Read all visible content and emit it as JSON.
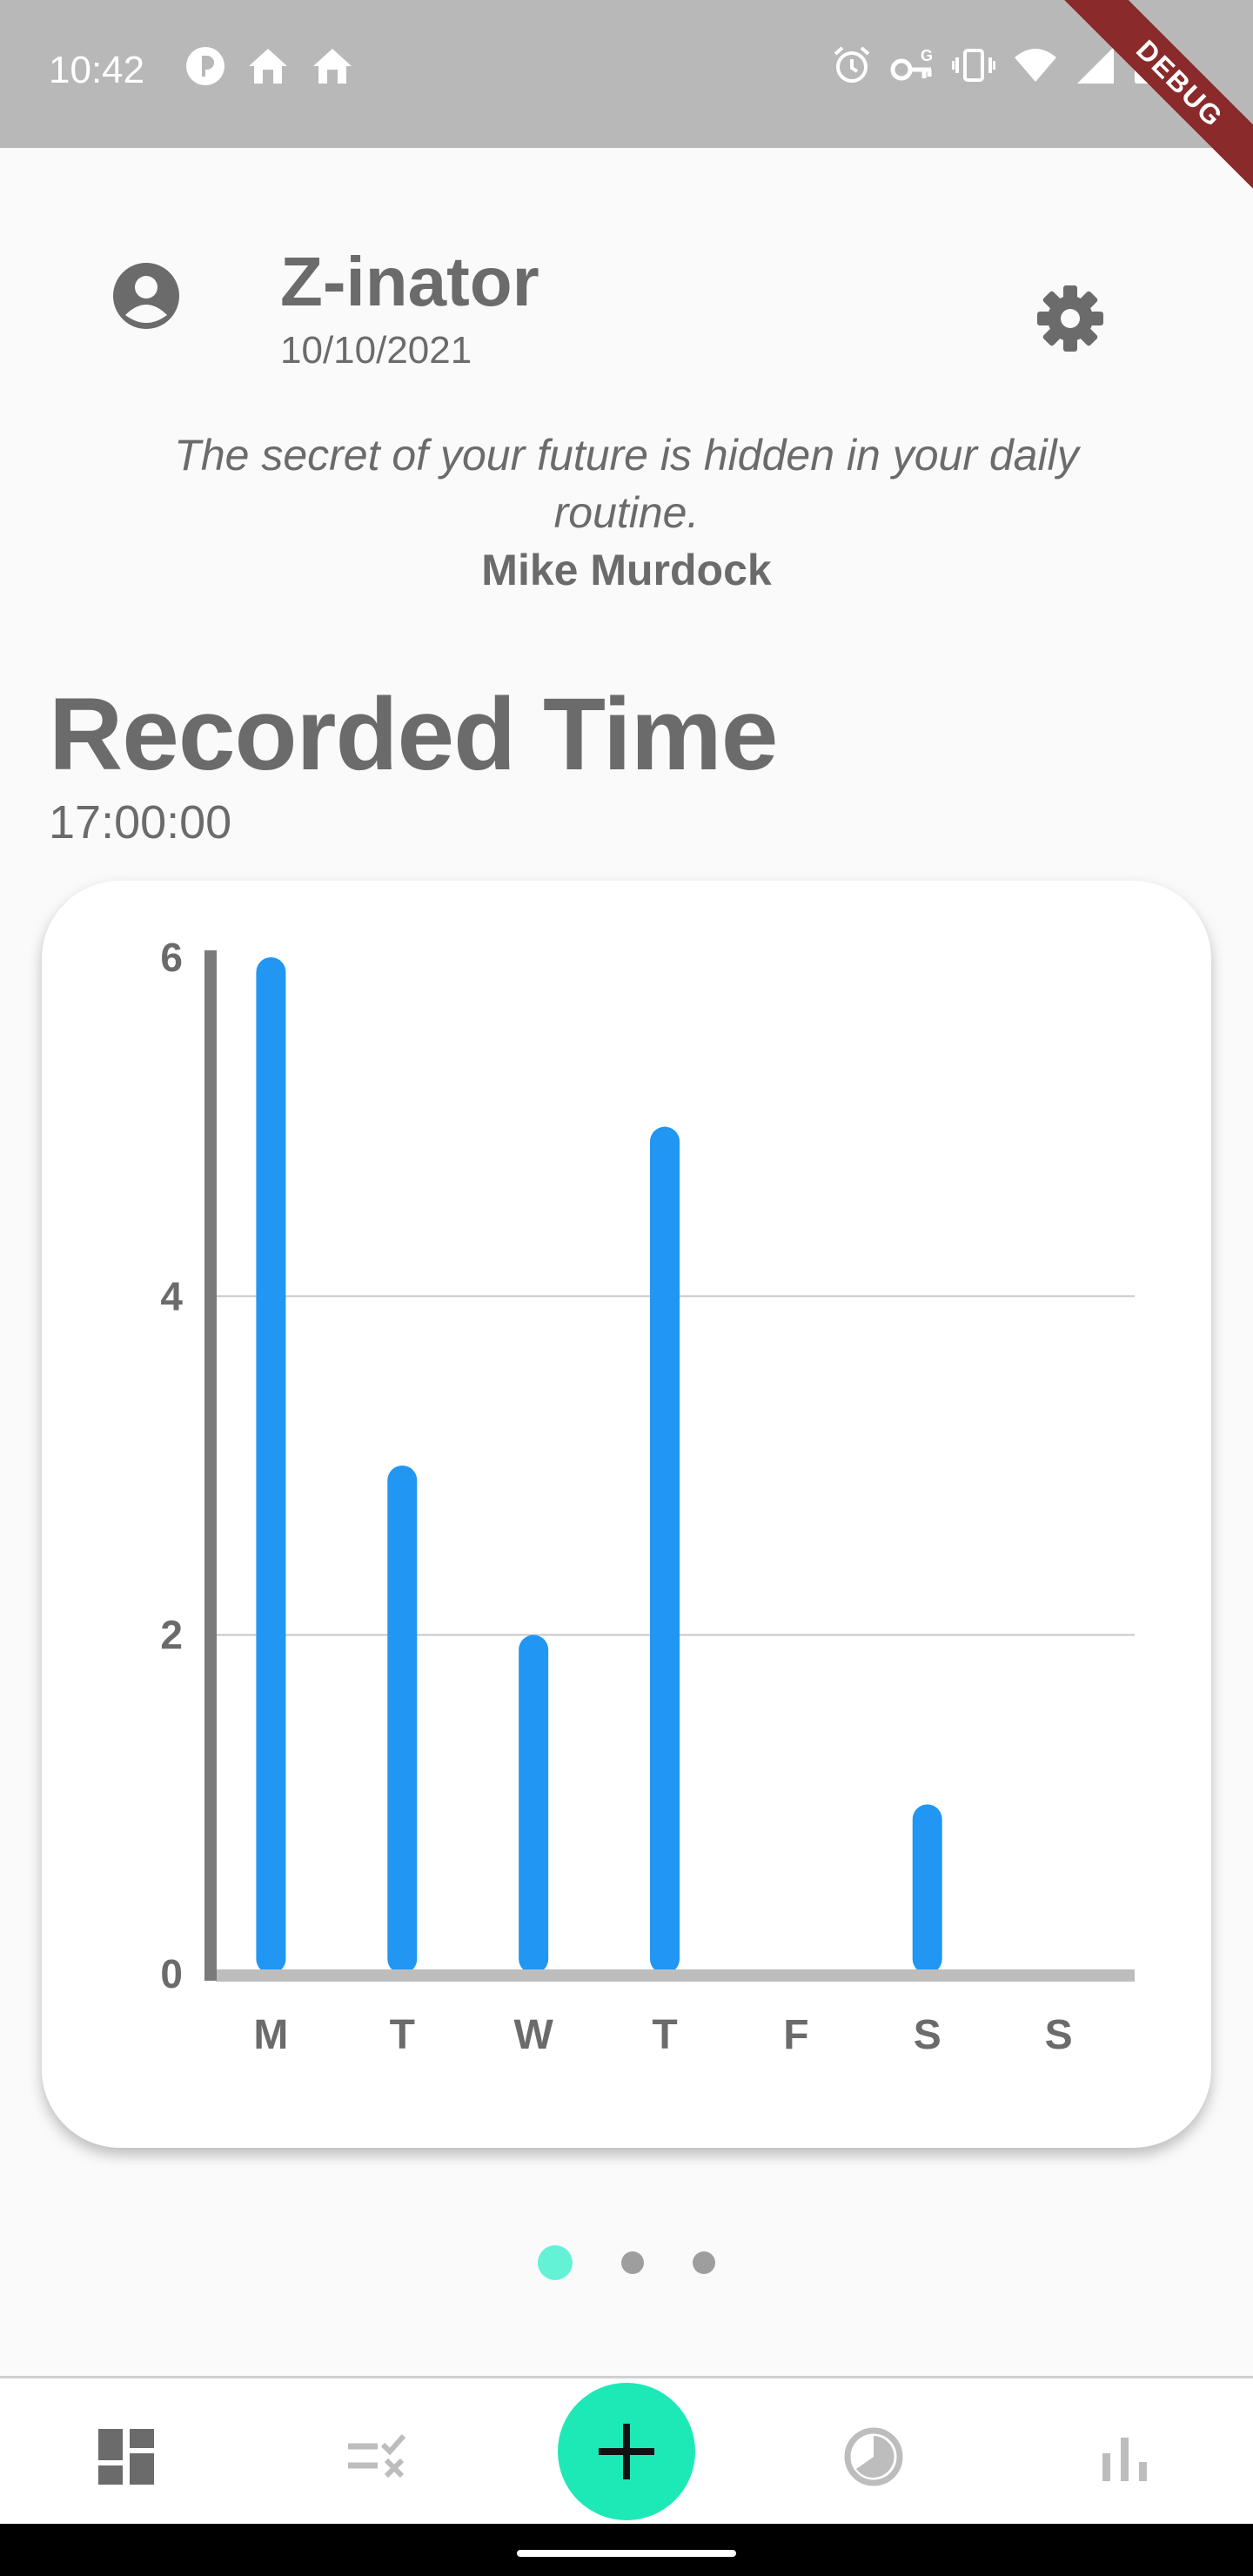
{
  "status_bar": {
    "time": "10:42",
    "left_icons": [
      "app-notification-icon",
      "home-icon",
      "home-icon"
    ],
    "right_icons": [
      "alarm-icon",
      "vpn-key-icon",
      "vibrate-icon",
      "wifi-icon",
      "signal-icon",
      "battery-charging-icon"
    ],
    "debug_label": "DEBUG"
  },
  "header": {
    "title": "Z-inator",
    "date": "10/10/2021",
    "avatar_icon": "account-circle-icon",
    "settings_icon": "gear-icon"
  },
  "quote": {
    "text": "The secret of your future is hidden in your daily routine.",
    "author": "Mike Murdock"
  },
  "recorded": {
    "title": "Recorded Time",
    "value": "17:00:00"
  },
  "chart_data": {
    "type": "bar",
    "categories": [
      "M",
      "T",
      "W",
      "T",
      "F",
      "S",
      "S"
    ],
    "values": [
      6,
      3,
      2,
      5,
      0,
      1,
      0
    ],
    "ylim": [
      0,
      6
    ],
    "yticks": [
      0,
      2,
      4,
      6
    ],
    "grid": true,
    "bar_color": "#2196f3"
  },
  "pager": {
    "pages": 3,
    "active": 0,
    "active_color": "#64f2d6"
  },
  "bottom_nav": {
    "items": [
      "dashboard-icon",
      "tasks-icon",
      "add-icon",
      "timer-icon",
      "bar-chart-icon"
    ],
    "fab_color": "#1de9b6"
  }
}
